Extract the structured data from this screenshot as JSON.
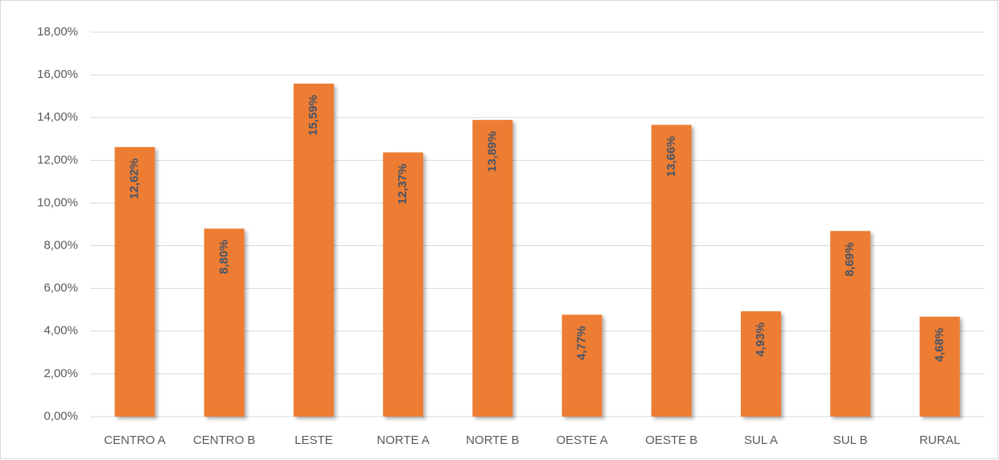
{
  "chart_data": {
    "type": "bar",
    "categories": [
      "CENTRO A",
      "CENTRO B",
      "LESTE",
      "NORTE A",
      "NORTE B",
      "OESTE A",
      "OESTE B",
      "SUL A",
      "SUL B",
      "RURAL"
    ],
    "values": [
      12.62,
      8.8,
      15.59,
      12.37,
      13.89,
      4.77,
      13.66,
      4.93,
      8.69,
      4.68
    ],
    "value_labels": [
      "12,62%",
      "8,80%",
      "15,59%",
      "12,37%",
      "13,89%",
      "4,77%",
      "13,66%",
      "4,93%",
      "8,69%",
      "4,68%"
    ],
    "color": "#ed7d31",
    "ylim": [
      0,
      18
    ],
    "yticks": [
      {
        "value": 0,
        "label": "0,00%"
      },
      {
        "value": 2,
        "label": "2,00%"
      },
      {
        "value": 4,
        "label": "4,00%"
      },
      {
        "value": 6,
        "label": "6,00%"
      },
      {
        "value": 8,
        "label": "8,00%"
      },
      {
        "value": 10,
        "label": "10,00%"
      },
      {
        "value": 12,
        "label": "12,00%"
      },
      {
        "value": 14,
        "label": "14,00%"
      },
      {
        "value": 16,
        "label": "16,00%"
      },
      {
        "value": 18,
        "label": "18,00%"
      }
    ],
    "grid": true
  }
}
